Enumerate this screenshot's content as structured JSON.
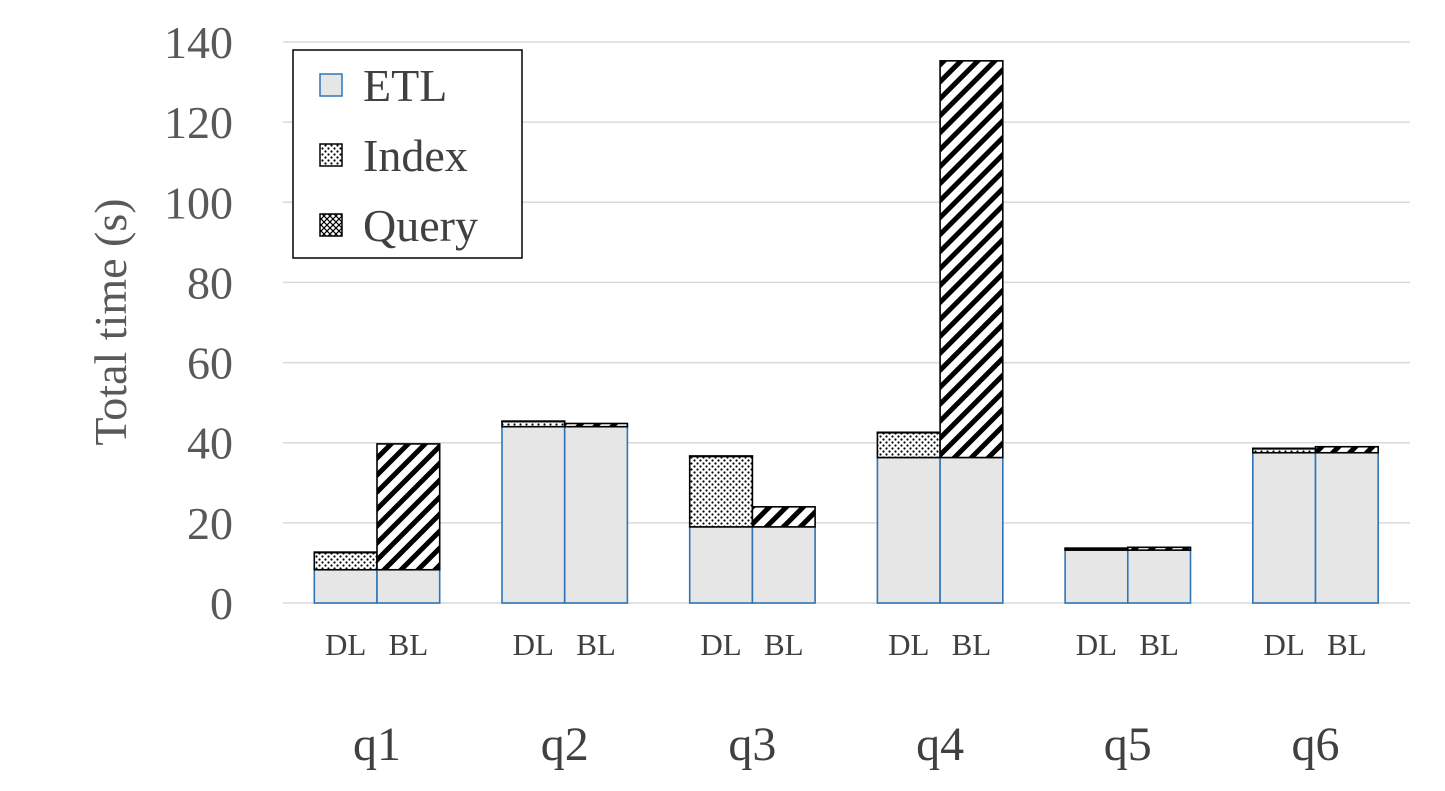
{
  "chart_data": {
    "type": "bar",
    "stacked": true,
    "ylabel": "Total time (s)",
    "ylim": [
      0,
      140
    ],
    "yticks": [
      "0",
      "20",
      "40",
      "60",
      "80",
      "100",
      "120",
      "140"
    ],
    "grid": true,
    "legend_position": "top-left",
    "groups": [
      "q1",
      "q2",
      "q3",
      "q4",
      "q5",
      "q6"
    ],
    "bars_per_group": [
      "DL",
      "BL"
    ],
    "series": [
      {
        "name": "ETL",
        "pattern": "solid",
        "fill": "#e6e6e6",
        "stroke": "#2e75b6",
        "values": {
          "q1": {
            "DL": 8.3,
            "BL": 8.3
          },
          "q2": {
            "DL": 44.0,
            "BL": 44.0
          },
          "q3": {
            "DL": 19.0,
            "BL": 19.0
          },
          "q4": {
            "DL": 36.3,
            "BL": 36.3
          },
          "q5": {
            "DL": 13.2,
            "BL": 13.2
          },
          "q6": {
            "DL": 37.5,
            "BL": 37.5
          }
        }
      },
      {
        "name": "Index",
        "pattern": "dots",
        "values": {
          "q1": {
            "DL": 4.3,
            "BL": 0
          },
          "q2": {
            "DL": 1.3,
            "BL": 0
          },
          "q3": {
            "DL": 17.6,
            "BL": 0
          },
          "q4": {
            "DL": 6.2,
            "BL": 0
          },
          "q5": {
            "DL": 0.4,
            "BL": 0
          },
          "q6": {
            "DL": 1.0,
            "BL": 0
          }
        }
      },
      {
        "name": "Query",
        "pattern": "diagonal",
        "values": {
          "q1": {
            "DL": 0.1,
            "BL": 31.4
          },
          "q2": {
            "DL": 0.1,
            "BL": 0.8
          },
          "q3": {
            "DL": 0.1,
            "BL": 5.0
          },
          "q4": {
            "DL": 0.1,
            "BL": 99.0
          },
          "q5": {
            "DL": 0.1,
            "BL": 0.7
          },
          "q6": {
            "DL": 0.1,
            "BL": 1.5
          }
        }
      }
    ],
    "colors": {
      "grid": "#d9d9d9",
      "etl_fill": "#e6e6e6",
      "etl_stroke": "#2e75b6",
      "outline": "#000000"
    }
  }
}
